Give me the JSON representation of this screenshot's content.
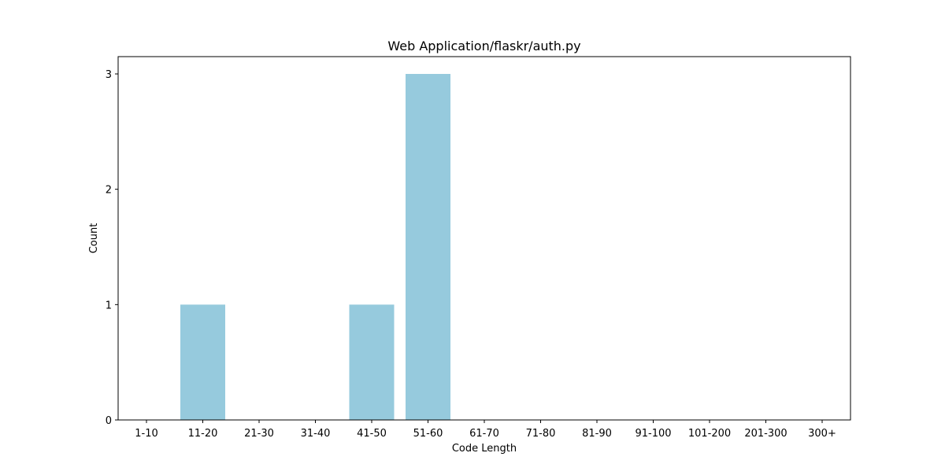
{
  "chart_data": {
    "type": "bar",
    "title": "Web Application/flaskr/auth.py",
    "xlabel": "Code Length",
    "ylabel": "Count",
    "categories": [
      "1-10",
      "11-20",
      "21-30",
      "31-40",
      "41-50",
      "51-60",
      "61-70",
      "71-80",
      "81-90",
      "91-100",
      "101-200",
      "201-300",
      "300+"
    ],
    "values": [
      0,
      1,
      0,
      0,
      1,
      3,
      0,
      0,
      0,
      0,
      0,
      0,
      0
    ],
    "yticks": [
      0,
      1,
      2,
      3
    ],
    "ylim": [
      0,
      3.15
    ],
    "grid": false,
    "colors": {
      "bar": "#96cadd",
      "axis": "#000000"
    }
  }
}
